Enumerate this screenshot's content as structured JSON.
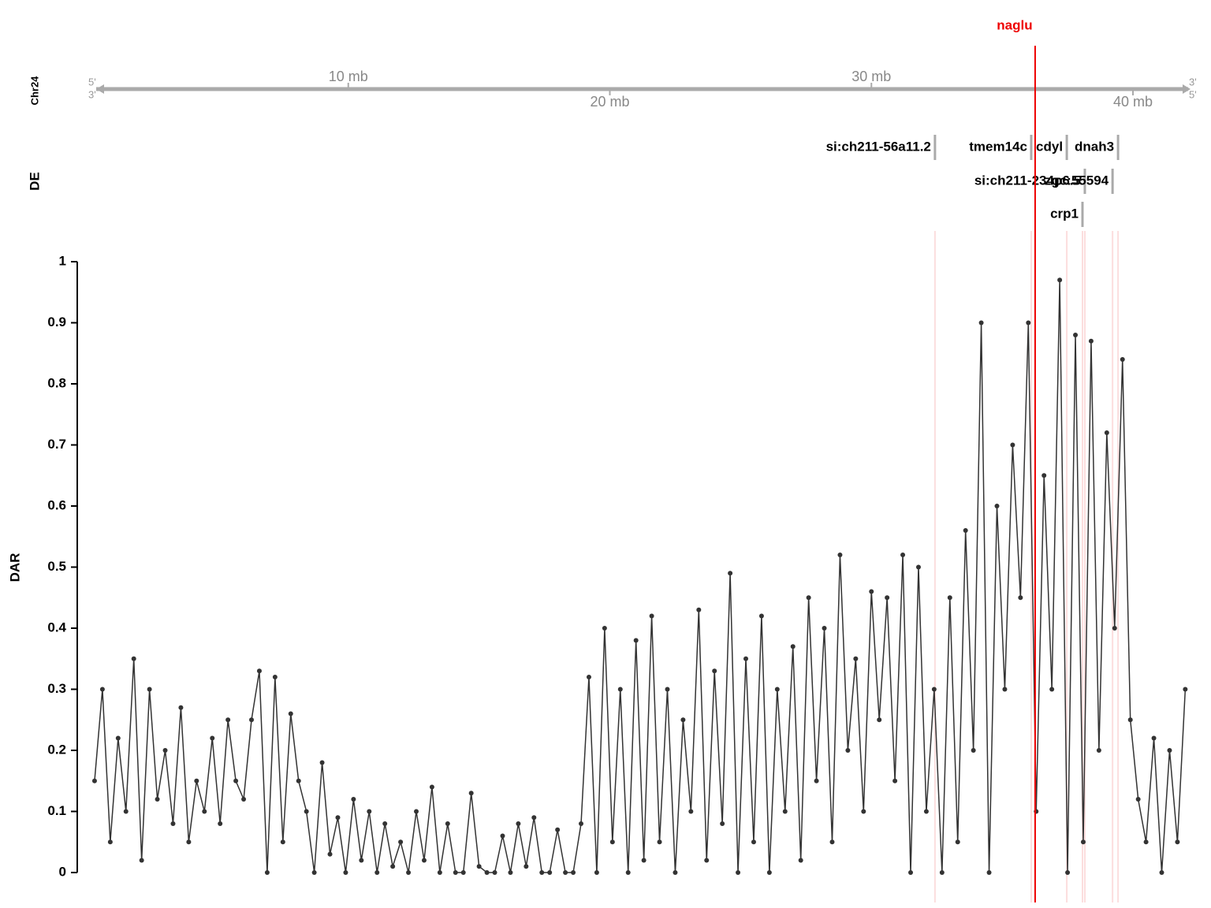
{
  "chart_data": {
    "type": "line",
    "chromosome": "Chr24",
    "strand_labels": [
      "5'",
      "3'"
    ],
    "highlight": {
      "name": "naglu",
      "position": 36.26,
      "color": "#ee0000"
    },
    "genome_ticks": [
      {
        "value": 10,
        "label": "10 mb"
      },
      {
        "value": 20,
        "label": "20 mb"
      },
      {
        "value": 30,
        "label": "30 mb"
      },
      {
        "value": 40,
        "label": "40 mb"
      }
    ],
    "track_label": "DE",
    "de_genes": [
      [
        {
          "name": "si:ch211-56a11.2",
          "position": 32.43
        },
        {
          "name": "tmem14c",
          "position": 36.11
        },
        {
          "name": "cdyl",
          "position": 37.47
        },
        {
          "name": "dnah3",
          "position": 39.43
        }
      ],
      [
        {
          "name": "si:ch211-234p6.5",
          "position": 38.16
        },
        {
          "name": "zgc:55594",
          "position": 39.22
        }
      ],
      [
        {
          "name": "crp1",
          "position": 38.07
        }
      ]
    ],
    "y_label": "DAR",
    "color": "#333333",
    "xlim": [
      0,
      42.2
    ],
    "ylim": [
      0,
      1
    ],
    "yticks": [
      0,
      0.1,
      0.2,
      0.3,
      0.4,
      0.5,
      0.6,
      0.7,
      0.8,
      0.9,
      1
    ],
    "x": [
      0.3,
      0.6,
      0.9,
      1.2,
      1.5,
      1.8,
      2.1,
      2.4,
      2.7,
      3.0,
      3.3,
      3.6,
      3.9,
      4.2,
      4.5,
      4.8,
      5.1,
      5.4,
      5.7,
      6.0,
      6.3,
      6.6,
      6.9,
      7.2,
      7.5,
      7.8,
      8.1,
      8.4,
      8.7,
      9.0,
      9.3,
      9.6,
      9.9,
      10.2,
      10.5,
      10.8,
      11.1,
      11.4,
      11.7,
      12.0,
      12.3,
      12.6,
      12.9,
      13.2,
      13.5,
      13.8,
      14.1,
      14.4,
      14.7,
      15.0,
      15.3,
      15.6,
      15.9,
      16.2,
      16.5,
      16.8,
      17.1,
      17.4,
      17.7,
      18.0,
      18.3,
      18.6,
      18.9,
      19.2,
      19.5,
      19.8,
      20.1,
      20.4,
      20.7,
      21.0,
      21.3,
      21.6,
      21.9,
      22.2,
      22.5,
      22.8,
      23.1,
      23.4,
      23.7,
      24.0,
      24.3,
      24.6,
      24.9,
      25.2,
      25.5,
      25.8,
      26.1,
      26.4,
      26.7,
      27.0,
      27.3,
      27.6,
      27.9,
      28.2,
      28.5,
      28.8,
      29.1,
      29.4,
      29.7,
      30.0,
      30.3,
      30.6,
      30.9,
      31.2,
      31.5,
      31.8,
      32.1,
      32.4,
      32.7,
      33.0,
      33.3,
      33.6,
      33.9,
      34.2,
      34.5,
      34.8,
      35.1,
      35.4,
      35.7,
      36.0,
      36.3,
      36.6,
      36.9,
      37.2,
      37.5,
      37.8,
      38.1,
      38.4,
      38.7,
      39.0,
      39.3,
      39.6,
      39.9,
      40.2,
      40.5,
      40.8,
      41.1,
      41.4,
      41.7,
      42.0
    ],
    "values": [
      0.15,
      0.3,
      0.05,
      0.22,
      0.1,
      0.35,
      0.02,
      0.3,
      0.12,
      0.2,
      0.08,
      0.27,
      0.05,
      0.15,
      0.1,
      0.22,
      0.08,
      0.25,
      0.15,
      0.12,
      0.25,
      0.33,
      0.0,
      0.32,
      0.05,
      0.26,
      0.15,
      0.1,
      0.0,
      0.18,
      0.03,
      0.09,
      0.0,
      0.12,
      0.02,
      0.1,
      0.0,
      0.08,
      0.01,
      0.05,
      0.0,
      0.1,
      0.02,
      0.14,
      0.0,
      0.08,
      0.0,
      0.0,
      0.13,
      0.01,
      0.0,
      0.0,
      0.06,
      0.0,
      0.08,
      0.01,
      0.09,
      0.0,
      0.0,
      0.07,
      0.0,
      0.0,
      0.08,
      0.32,
      0.0,
      0.4,
      0.05,
      0.3,
      0.0,
      0.38,
      0.02,
      0.42,
      0.05,
      0.3,
      0.0,
      0.25,
      0.1,
      0.43,
      0.02,
      0.33,
      0.08,
      0.49,
      0.0,
      0.35,
      0.05,
      0.42,
      0.0,
      0.3,
      0.1,
      0.37,
      0.02,
      0.45,
      0.15,
      0.4,
      0.05,
      0.52,
      0.2,
      0.35,
      0.1,
      0.46,
      0.25,
      0.45,
      0.15,
      0.52,
      0.0,
      0.5,
      0.1,
      0.3,
      0.0,
      0.45,
      0.05,
      0.56,
      0.2,
      0.9,
      0.0,
      0.6,
      0.3,
      0.7,
      0.45,
      0.9,
      0.1,
      0.65,
      0.3,
      0.97,
      0.0,
      0.88,
      0.05,
      0.87,
      0.2,
      0.72,
      0.4,
      0.84,
      0.25,
      0.12,
      0.05,
      0.22,
      0.0,
      0.2,
      0.05,
      0.3
    ]
  }
}
